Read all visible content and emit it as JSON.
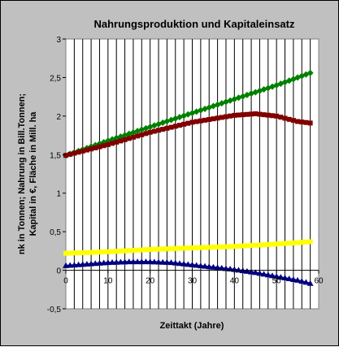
{
  "chart_data": {
    "type": "line",
    "title": "Nahrungsproduktion und Kapitaleinsatz",
    "xlabel": "Zeittakt (Jahre)",
    "ylabel_line1": "nk in Tonnen; Nahrung in Bill.Tonnen;",
    "ylabel_line2": "Kapital in €, Fläche in Mill. ha",
    "xlim": [
      0,
      60
    ],
    "ylim": [
      -0.5,
      3
    ],
    "x_ticks": [
      "0",
      "10",
      "20",
      "30",
      "40",
      "50",
      "60"
    ],
    "y_ticks": [
      "-0,5",
      "0",
      "0,5",
      "1",
      "1,5",
      "2",
      "2,5",
      "3"
    ],
    "grid": "vertical",
    "legend": "none",
    "background": "#ffffff",
    "series": [
      {
        "color": "#008000",
        "marker": "diamond",
        "points": [
          [
            0,
            1.49
          ],
          [
            10,
            1.68
          ],
          [
            20,
            1.86
          ],
          [
            30,
            2.04
          ],
          [
            40,
            2.22
          ],
          [
            50,
            2.4
          ],
          [
            58,
            2.56
          ]
        ]
      },
      {
        "color": "#800000",
        "marker": "square",
        "points": [
          [
            0,
            1.49
          ],
          [
            10,
            1.63
          ],
          [
            20,
            1.79
          ],
          [
            30,
            1.92
          ],
          [
            40,
            2.01
          ],
          [
            45,
            2.03
          ],
          [
            50,
            2.0
          ],
          [
            55,
            1.93
          ],
          [
            58,
            1.91
          ]
        ]
      },
      {
        "color": "#ffff00",
        "marker": "square",
        "points": [
          [
            0,
            0.22
          ],
          [
            10,
            0.24
          ],
          [
            20,
            0.27
          ],
          [
            30,
            0.29
          ],
          [
            40,
            0.31
          ],
          [
            50,
            0.34
          ],
          [
            58,
            0.37
          ]
        ]
      },
      {
        "color": "#000080",
        "marker": "triangle",
        "points": [
          [
            0,
            0.06
          ],
          [
            5,
            0.08
          ],
          [
            10,
            0.1
          ],
          [
            15,
            0.11
          ],
          [
            20,
            0.11
          ],
          [
            25,
            0.1
          ],
          [
            30,
            0.07
          ],
          [
            35,
            0.04
          ],
          [
            40,
            0.01
          ],
          [
            45,
            -0.03
          ],
          [
            50,
            -0.08
          ],
          [
            55,
            -0.13
          ],
          [
            58,
            -0.17
          ]
        ]
      }
    ]
  }
}
